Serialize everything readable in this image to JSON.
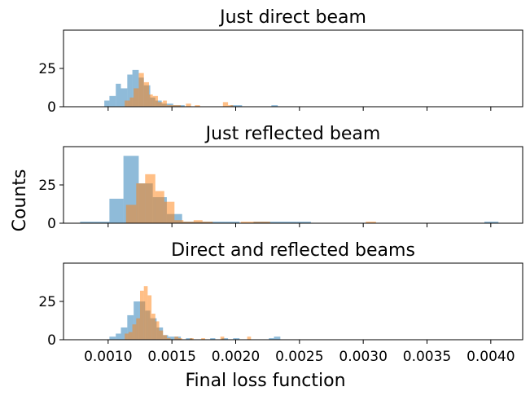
{
  "chart_data": {
    "type": "histogram",
    "shared_x": true,
    "xlabel": "Final loss function",
    "ylabel": "Counts",
    "xlim": [
      0.00065,
      0.00425
    ],
    "xticks": [
      "0.0010",
      "0.0015",
      "0.0020",
      "0.0025",
      "0.0030",
      "0.0035",
      "0.0040"
    ],
    "xtick_values": [
      0.001,
      0.0015,
      0.002,
      0.0025,
      0.003,
      0.0035,
      0.004
    ],
    "ylim": [
      0,
      50
    ],
    "yticks": [
      "0",
      "25"
    ],
    "ytick_values": [
      0,
      25
    ],
    "colors": {
      "series_a": "#1f77b4",
      "series_b": "#ff7f0e"
    },
    "alpha": 0.5,
    "panels": [
      {
        "title": "Just direct beam",
        "series": [
          {
            "color": "#1f77b4",
            "bins": [
              [
                0.00097,
                0.00101,
                4
              ],
              [
                0.00101,
                0.00106,
                7
              ],
              [
                0.00106,
                0.0011,
                15
              ],
              [
                0.0011,
                0.00115,
                12
              ],
              [
                0.00115,
                0.00119,
                21
              ],
              [
                0.00119,
                0.00124,
                24
              ],
              [
                0.00124,
                0.00128,
                19
              ],
              [
                0.00128,
                0.00133,
                14
              ],
              [
                0.00133,
                0.00137,
                6
              ],
              [
                0.00137,
                0.00142,
                4
              ],
              [
                0.00142,
                0.00146,
                2
              ],
              [
                0.00146,
                0.00151,
                2
              ],
              [
                0.00151,
                0.00155,
                1
              ],
              [
                0.00155,
                0.0016,
                1
              ],
              [
                0.00196,
                0.00201,
                1
              ],
              [
                0.00201,
                0.00205,
                1
              ],
              [
                0.00228,
                0.00233,
                1
              ]
            ]
          },
          {
            "color": "#ff7f0e",
            "bins": [
              [
                0.00113,
                0.00117,
                4
              ],
              [
                0.00117,
                0.0012,
                6
              ],
              [
                0.0012,
                0.00124,
                12
              ],
              [
                0.00124,
                0.00128,
                22
              ],
              [
                0.00128,
                0.00132,
                16
              ],
              [
                0.00132,
                0.00135,
                8
              ],
              [
                0.00135,
                0.00139,
                7
              ],
              [
                0.00139,
                0.00143,
                3
              ],
              [
                0.00143,
                0.00146,
                4
              ],
              [
                0.00146,
                0.0015,
                1
              ],
              [
                0.0015,
                0.00154,
                1
              ],
              [
                0.00154,
                0.00157,
                1
              ],
              [
                0.00161,
                0.00165,
                2
              ],
              [
                0.00168,
                0.00172,
                1
              ],
              [
                0.0019,
                0.00194,
                3
              ],
              [
                0.00194,
                0.00198,
                1
              ]
            ]
          }
        ]
      },
      {
        "title": "Just reflected beam",
        "series": [
          {
            "color": "#1f77b4",
            "bins": [
              [
                0.00078,
                0.00089,
                1
              ],
              [
                0.00089,
                0.00101,
                1
              ],
              [
                0.00101,
                0.00112,
                16
              ],
              [
                0.00112,
                0.00124,
                44
              ],
              [
                0.00124,
                0.00135,
                26
              ],
              [
                0.00135,
                0.00146,
                17
              ],
              [
                0.00146,
                0.00158,
                6
              ],
              [
                0.00158,
                0.00169,
                1
              ],
              [
                0.00169,
                0.0018,
                1
              ],
              [
                0.0018,
                0.00192,
                1
              ],
              [
                0.00192,
                0.00203,
                1
              ],
              [
                0.00214,
                0.00226,
                1
              ],
              [
                0.00226,
                0.00237,
                1
              ],
              [
                0.00237,
                0.00248,
                1
              ],
              [
                0.00248,
                0.00259,
                1
              ],
              [
                0.00395,
                0.00406,
                1
              ]
            ]
          },
          {
            "color": "#ff7f0e",
            "bins": [
              [
                0.00114,
                0.00122,
                12
              ],
              [
                0.00122,
                0.00129,
                26
              ],
              [
                0.00129,
                0.00137,
                32
              ],
              [
                0.00137,
                0.00144,
                21
              ],
              [
                0.00144,
                0.00152,
                14
              ],
              [
                0.00152,
                0.00159,
                2
              ],
              [
                0.00159,
                0.00167,
                1
              ],
              [
                0.00167,
                0.00174,
                2
              ],
              [
                0.00174,
                0.00182,
                1
              ],
              [
                0.00204,
                0.00212,
                1
              ],
              [
                0.00212,
                0.00219,
                1
              ],
              [
                0.00219,
                0.00227,
                1
              ],
              [
                0.00302,
                0.0031,
                1
              ]
            ]
          }
        ]
      },
      {
        "title": "Direct and reflected beams",
        "series": [
          {
            "color": "#1f77b4",
            "bins": [
              [
                0.00101,
                0.00106,
                2
              ],
              [
                0.00106,
                0.0011,
                4
              ],
              [
                0.0011,
                0.00115,
                8
              ],
              [
                0.00115,
                0.0012,
                16
              ],
              [
                0.0012,
                0.00124,
                25
              ],
              [
                0.00124,
                0.00129,
                25
              ],
              [
                0.00129,
                0.00133,
                19
              ],
              [
                0.00133,
                0.00138,
                14
              ],
              [
                0.00138,
                0.00143,
                8
              ],
              [
                0.00143,
                0.00147,
                3
              ],
              [
                0.00147,
                0.00152,
                2
              ],
              [
                0.00152,
                0.00157,
                2
              ],
              [
                0.00161,
                0.00166,
                1
              ],
              [
                0.0018,
                0.00184,
                1
              ],
              [
                0.00189,
                0.00194,
                1
              ],
              [
                0.00198,
                0.00203,
                1
              ],
              [
                0.00226,
                0.0023,
                1
              ],
              [
                0.0023,
                0.00235,
                2
              ]
            ]
          },
          {
            "color": "#ff7f0e",
            "bins": [
              [
                0.00113,
                0.00116,
                4
              ],
              [
                0.00116,
                0.00119,
                5
              ],
              [
                0.00119,
                0.00122,
                10
              ],
              [
                0.00122,
                0.00125,
                14
              ],
              [
                0.00125,
                0.00128,
                32
              ],
              [
                0.00128,
                0.00131,
                35
              ],
              [
                0.00131,
                0.00134,
                29
              ],
              [
                0.00134,
                0.00137,
                17
              ],
              [
                0.00137,
                0.0014,
                12
              ],
              [
                0.0014,
                0.00143,
                6
              ],
              [
                0.00143,
                0.00146,
                3
              ],
              [
                0.00146,
                0.00149,
                1
              ],
              [
                0.00152,
                0.00155,
                2
              ],
              [
                0.00155,
                0.00158,
                1
              ],
              [
                0.00164,
                0.00167,
                1
              ],
              [
                0.00173,
                0.00176,
                1
              ],
              [
                0.00188,
                0.00191,
                2
              ],
              [
                0.00209,
                0.00212,
                2
              ]
            ]
          }
        ]
      }
    ]
  }
}
